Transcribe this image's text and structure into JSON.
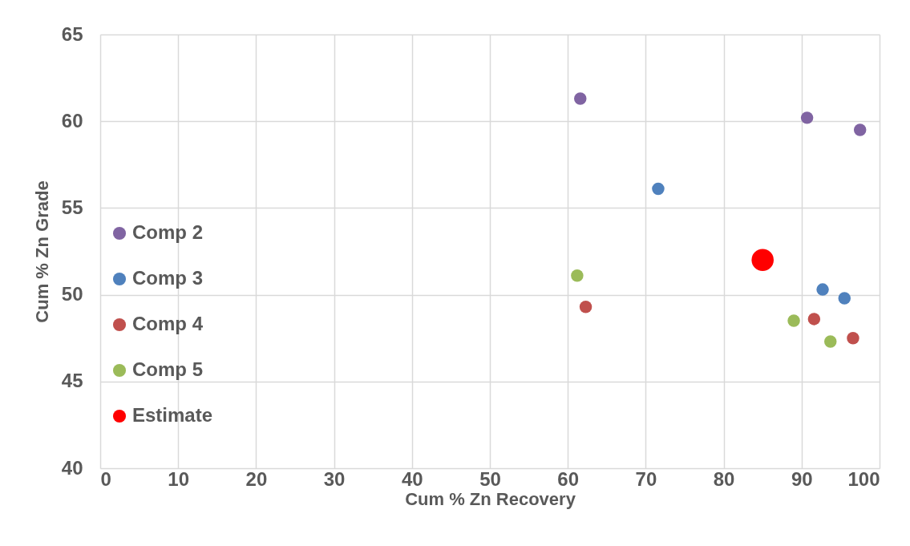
{
  "chart_data": {
    "type": "scatter",
    "xlabel": "Cum % Zn Recovery",
    "ylabel": "Cum % Zn Grade",
    "xlim": [
      0,
      100
    ],
    "xticks": [
      0,
      10,
      20,
      30,
      40,
      50,
      60,
      70,
      80,
      90,
      100
    ],
    "ylim": [
      40,
      65
    ],
    "yticks": [
      40,
      45,
      50,
      55,
      60,
      65
    ],
    "grid": true,
    "legend": "left",
    "marker": "circle",
    "series": [
      {
        "name": "Comp 2",
        "color": "#8064a2",
        "x": [
          61.6,
          90.7,
          97.5
        ],
        "values": [
          61.3,
          60.2,
          59.5
        ]
      },
      {
        "name": "Comp 3",
        "color": "#4f81bd",
        "x": [
          71.6,
          92.7,
          95.5
        ],
        "values": [
          56.1,
          50.3,
          49.8
        ]
      },
      {
        "name": "Comp 4",
        "color": "#c0504d",
        "x": [
          62.3,
          91.6,
          96.6
        ],
        "values": [
          49.3,
          48.6,
          47.5
        ]
      },
      {
        "name": "Comp 5",
        "color": "#9bbb59",
        "x": [
          61.2,
          89.0,
          93.7
        ],
        "values": [
          51.1,
          48.5,
          47.3
        ]
      },
      {
        "name": "Estimate",
        "color": "#ff0000",
        "type": "bubble",
        "x": [
          85.0
        ],
        "values": [
          52.0
        ],
        "sizes": [
          1
        ]
      }
    ]
  }
}
